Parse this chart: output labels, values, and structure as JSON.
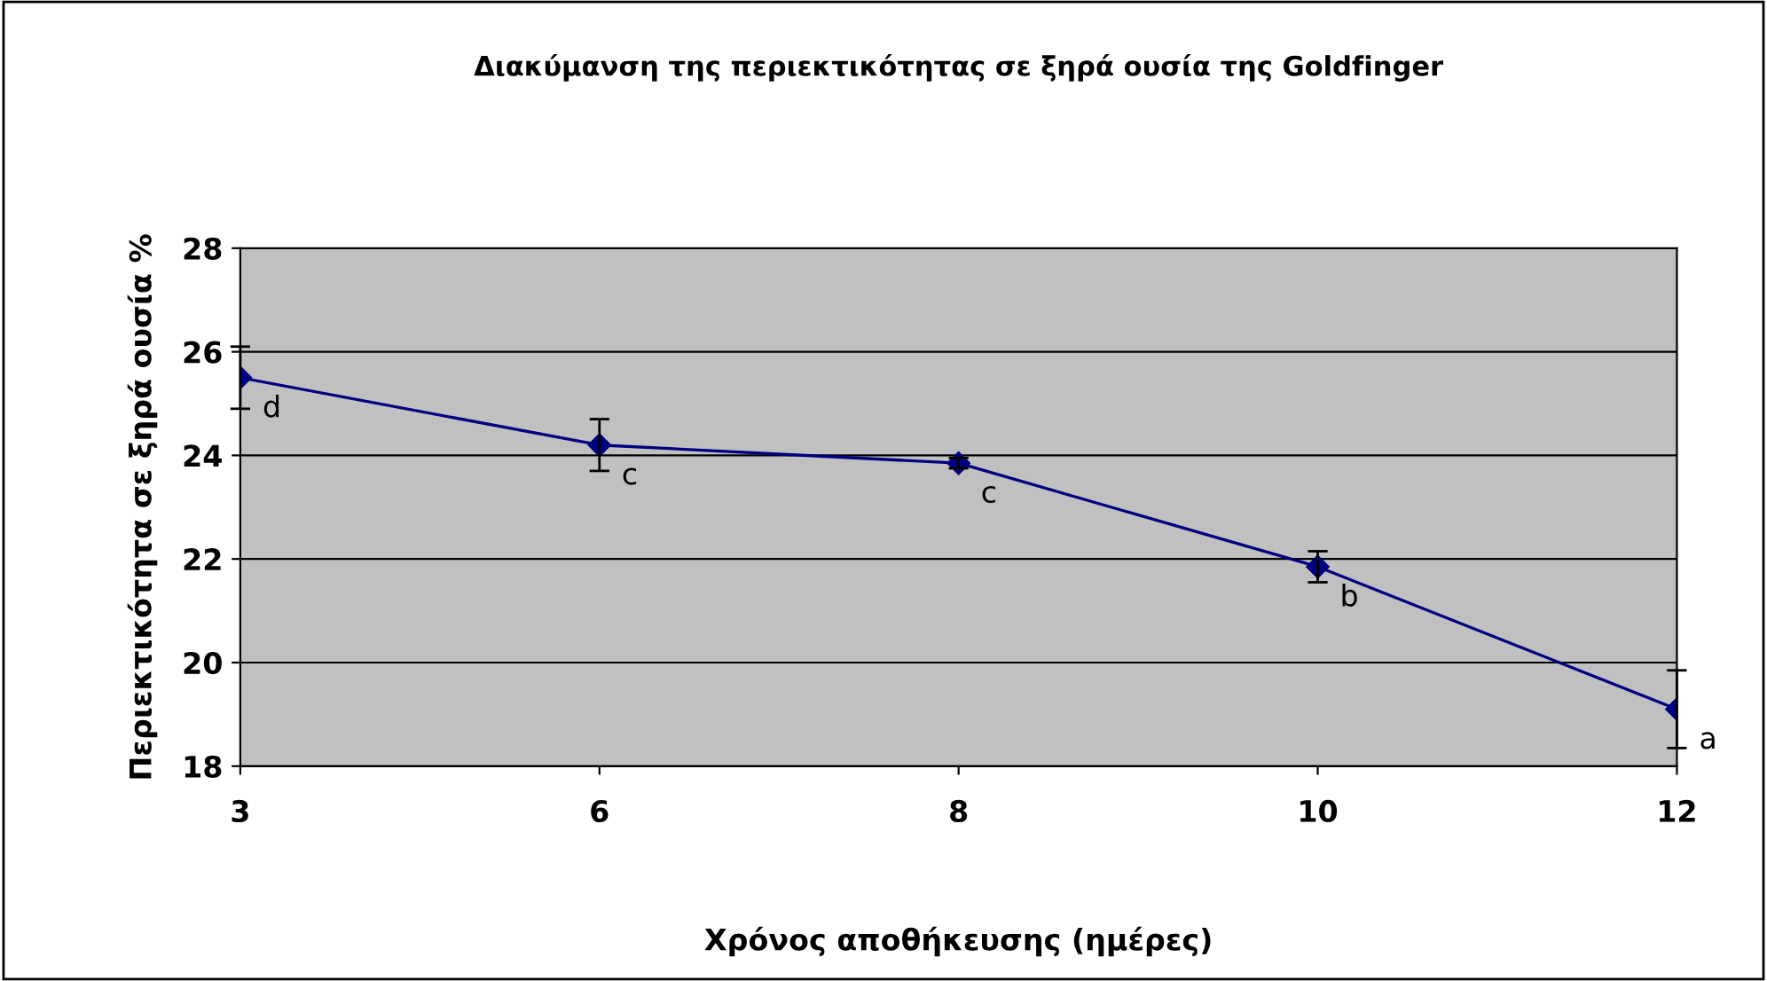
{
  "chart_data": {
    "type": "line",
    "title": "Διακύμανση της περιεκτικότητας σε ξηρά ουσία της Goldfinger",
    "xlabel": "Χρόνος αποθήκευσης (ημέρες)",
    "ylabel": "Περιεκτικότητα σε ξηρά ουσία %",
    "categories": [
      "3",
      "6",
      "8",
      "10",
      "12"
    ],
    "series": [
      {
        "color": "#000080",
        "values": [
          25.5,
          24.2,
          23.85,
          21.85,
          19.1
        ],
        "errors": [
          0.6,
          0.5,
          0.1,
          0.3,
          0.75
        ]
      }
    ],
    "ylim": [
      18,
      28
    ],
    "yticks": [
      18,
      20,
      22,
      24,
      26,
      28
    ],
    "grid": "y",
    "marker": "diamond",
    "line_style": "solid",
    "annotations": [
      {
        "text": "d",
        "x": "3",
        "y": 25.5
      },
      {
        "text": "c",
        "x": "6",
        "y": 24.2
      },
      {
        "text": "c",
        "x": "8",
        "y": 23.85
      },
      {
        "text": "b",
        "x": "10",
        "y": 21.85
      },
      {
        "text": "a",
        "x": "12",
        "y": 19.1
      }
    ]
  }
}
